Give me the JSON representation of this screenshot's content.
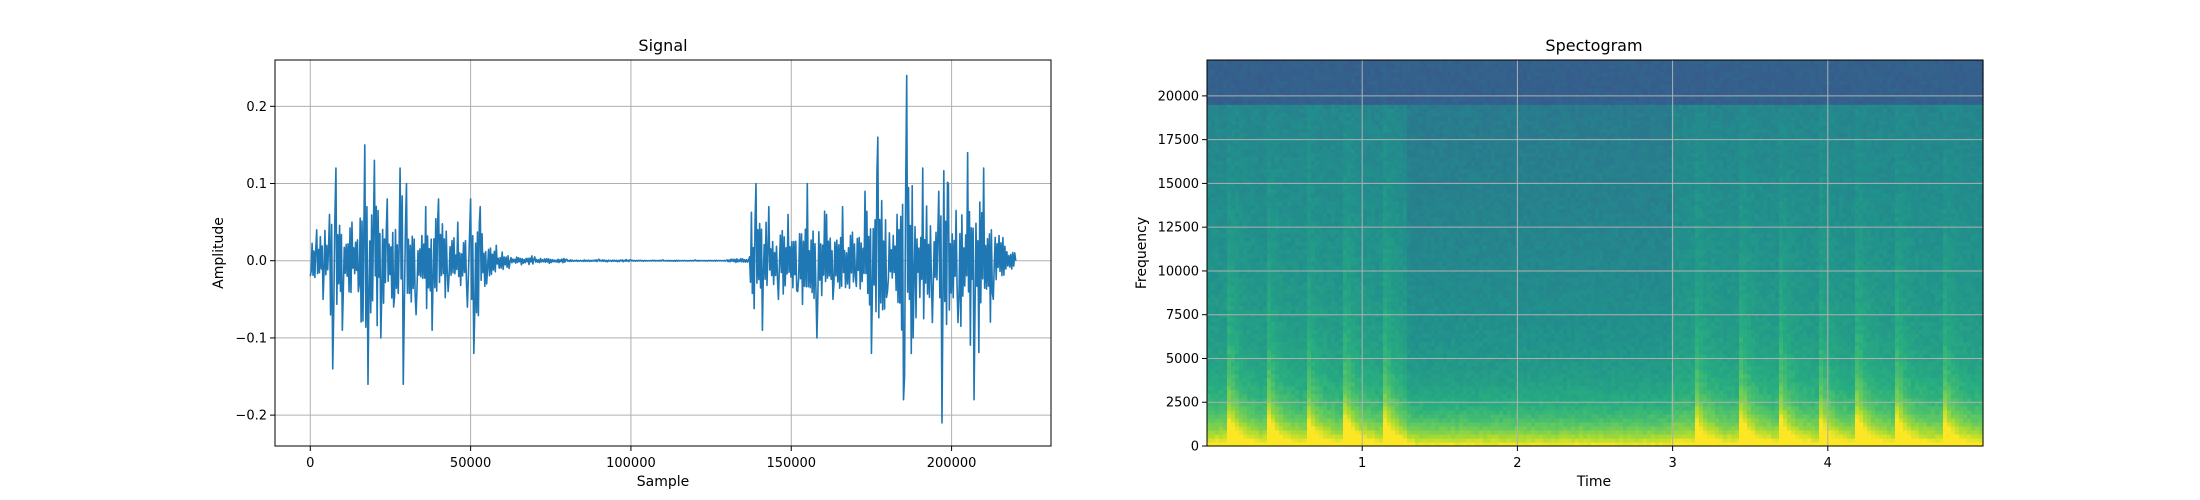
{
  "chart_data": [
    {
      "type": "line",
      "title": "Signal",
      "xlabel": "Sample",
      "ylabel": "Amplitude",
      "xlim": [
        -11000,
        231000
      ],
      "ylim": [
        -0.24,
        0.26
      ],
      "grid": true,
      "line_color": "#1f77b4",
      "xticks": [
        0,
        50000,
        100000,
        150000,
        200000
      ],
      "xtick_labels": [
        "0",
        "50000",
        "100000",
        "150000",
        "200000"
      ],
      "yticks": [
        -0.2,
        -0.1,
        0.0,
        0.1,
        0.2
      ],
      "ytick_labels": [
        "−0.2",
        "−0.1",
        "0.0",
        "0.1",
        "0.2"
      ],
      "series": [
        {
          "x": [
            0,
            2000,
            4000,
            6000,
            7000,
            8000,
            10000,
            13000,
            15000,
            17000,
            18000,
            20000,
            22000,
            24000,
            26000,
            28000,
            29000,
            30000,
            33000,
            36000,
            38000,
            40000,
            43000,
            46000,
            49000,
            50000,
            51000,
            53000,
            55000,
            58000,
            62000,
            70000,
            80000,
            90000,
            100000,
            110000,
            120000,
            130000,
            137000,
            139000,
            141000,
            143000,
            146000,
            149000,
            152000,
            155000,
            158000,
            161000,
            163000,
            166000,
            170000,
            173000,
            175000,
            177000,
            180000,
            183000,
            185000,
            186000,
            188000,
            191000,
            194000,
            196000,
            197000,
            199000,
            202000,
            205000,
            207000,
            210000,
            213000,
            216000,
            220000
          ],
          "y": [
            -0.02,
            0.04,
            -0.05,
            0.06,
            -0.14,
            0.12,
            -0.09,
            0.05,
            -0.04,
            0.15,
            -0.16,
            0.13,
            -0.1,
            0.08,
            -0.06,
            0.12,
            -0.16,
            0.1,
            -0.07,
            0.07,
            -0.09,
            0.08,
            -0.04,
            0.05,
            -0.06,
            0.08,
            -0.12,
            0.07,
            -0.03,
            0.02,
            -0.01,
            0.005,
            0.002,
            0.002,
            0.001,
            0.001,
            0.001,
            0.001,
            0.005,
            0.1,
            -0.09,
            0.07,
            -0.05,
            0.06,
            -0.04,
            0.1,
            -0.1,
            0.06,
            -0.05,
            0.07,
            -0.02,
            0.09,
            -0.12,
            0.16,
            -0.04,
            0.06,
            -0.18,
            0.24,
            -0.1,
            0.12,
            -0.08,
            0.09,
            -0.21,
            0.1,
            -0.08,
            0.14,
            -0.18,
            0.12,
            -0.05,
            0.03,
            0.0
          ]
        }
      ]
    },
    {
      "type": "heatmap",
      "title": "Spectogram",
      "xlabel": "Time",
      "ylabel": "Frequency",
      "xlim": [
        0,
        5.0
      ],
      "ylim": [
        0,
        22050
      ],
      "grid": true,
      "xticks": [
        1,
        2,
        3,
        4
      ],
      "xtick_labels": [
        "1",
        "2",
        "3",
        "4"
      ],
      "yticks": [
        0,
        2500,
        5000,
        7500,
        10000,
        12500,
        15000,
        17500,
        20000
      ],
      "ytick_labels": [
        "0",
        "2500",
        "5000",
        "7500",
        "10000",
        "12500",
        "15000",
        "17500",
        "20000"
      ],
      "colormap": [
        "#3b528b",
        "#2c728e",
        "#21918c",
        "#28ae80",
        "#5ec962",
        "#addc30",
        "#fde725"
      ],
      "onset_times": [
        0.15,
        0.4,
        0.65,
        0.9,
        1.15,
        3.15,
        3.45,
        3.7,
        3.95,
        4.2,
        4.45,
        4.75
      ]
    }
  ]
}
